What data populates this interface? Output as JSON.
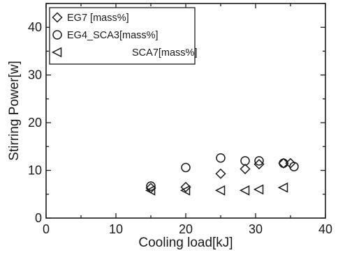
{
  "chart_data": {
    "type": "scatter",
    "xlabel": "Cooling load[kJ]",
    "ylabel": "Stirring Power[w]",
    "xlim": [
      0,
      40
    ],
    "ylim": [
      0,
      45
    ],
    "xticks": [
      0,
      10,
      20,
      30,
      40
    ],
    "yticks": [
      0,
      10,
      20,
      30,
      40
    ],
    "grid": false,
    "legend_position": "top-left",
    "series": [
      {
        "name": "EG7          [mass%]",
        "marker": "diamond",
        "x": [
          15.0,
          20.0,
          25.0,
          28.5,
          30.5,
          34.0,
          35.0
        ],
        "y": [
          6.3,
          6.5,
          9.3,
          10.3,
          11.3,
          11.5,
          11.5
        ]
      },
      {
        "name": "EG4_SCA3[mass%]",
        "marker": "circle",
        "x": [
          15.0,
          20.0,
          25.0,
          28.5,
          30.5,
          34.0,
          35.5
        ],
        "y": [
          6.7,
          10.6,
          12.6,
          12.0,
          12.0,
          11.5,
          10.8
        ]
      },
      {
        "name": "SCA7[mass%]",
        "marker": "triangle-left",
        "x": [
          15.0,
          20.0,
          25.0,
          28.5,
          30.5,
          34.0
        ],
        "y": [
          5.8,
          5.8,
          5.8,
          5.8,
          6.0,
          6.4
        ]
      }
    ]
  }
}
